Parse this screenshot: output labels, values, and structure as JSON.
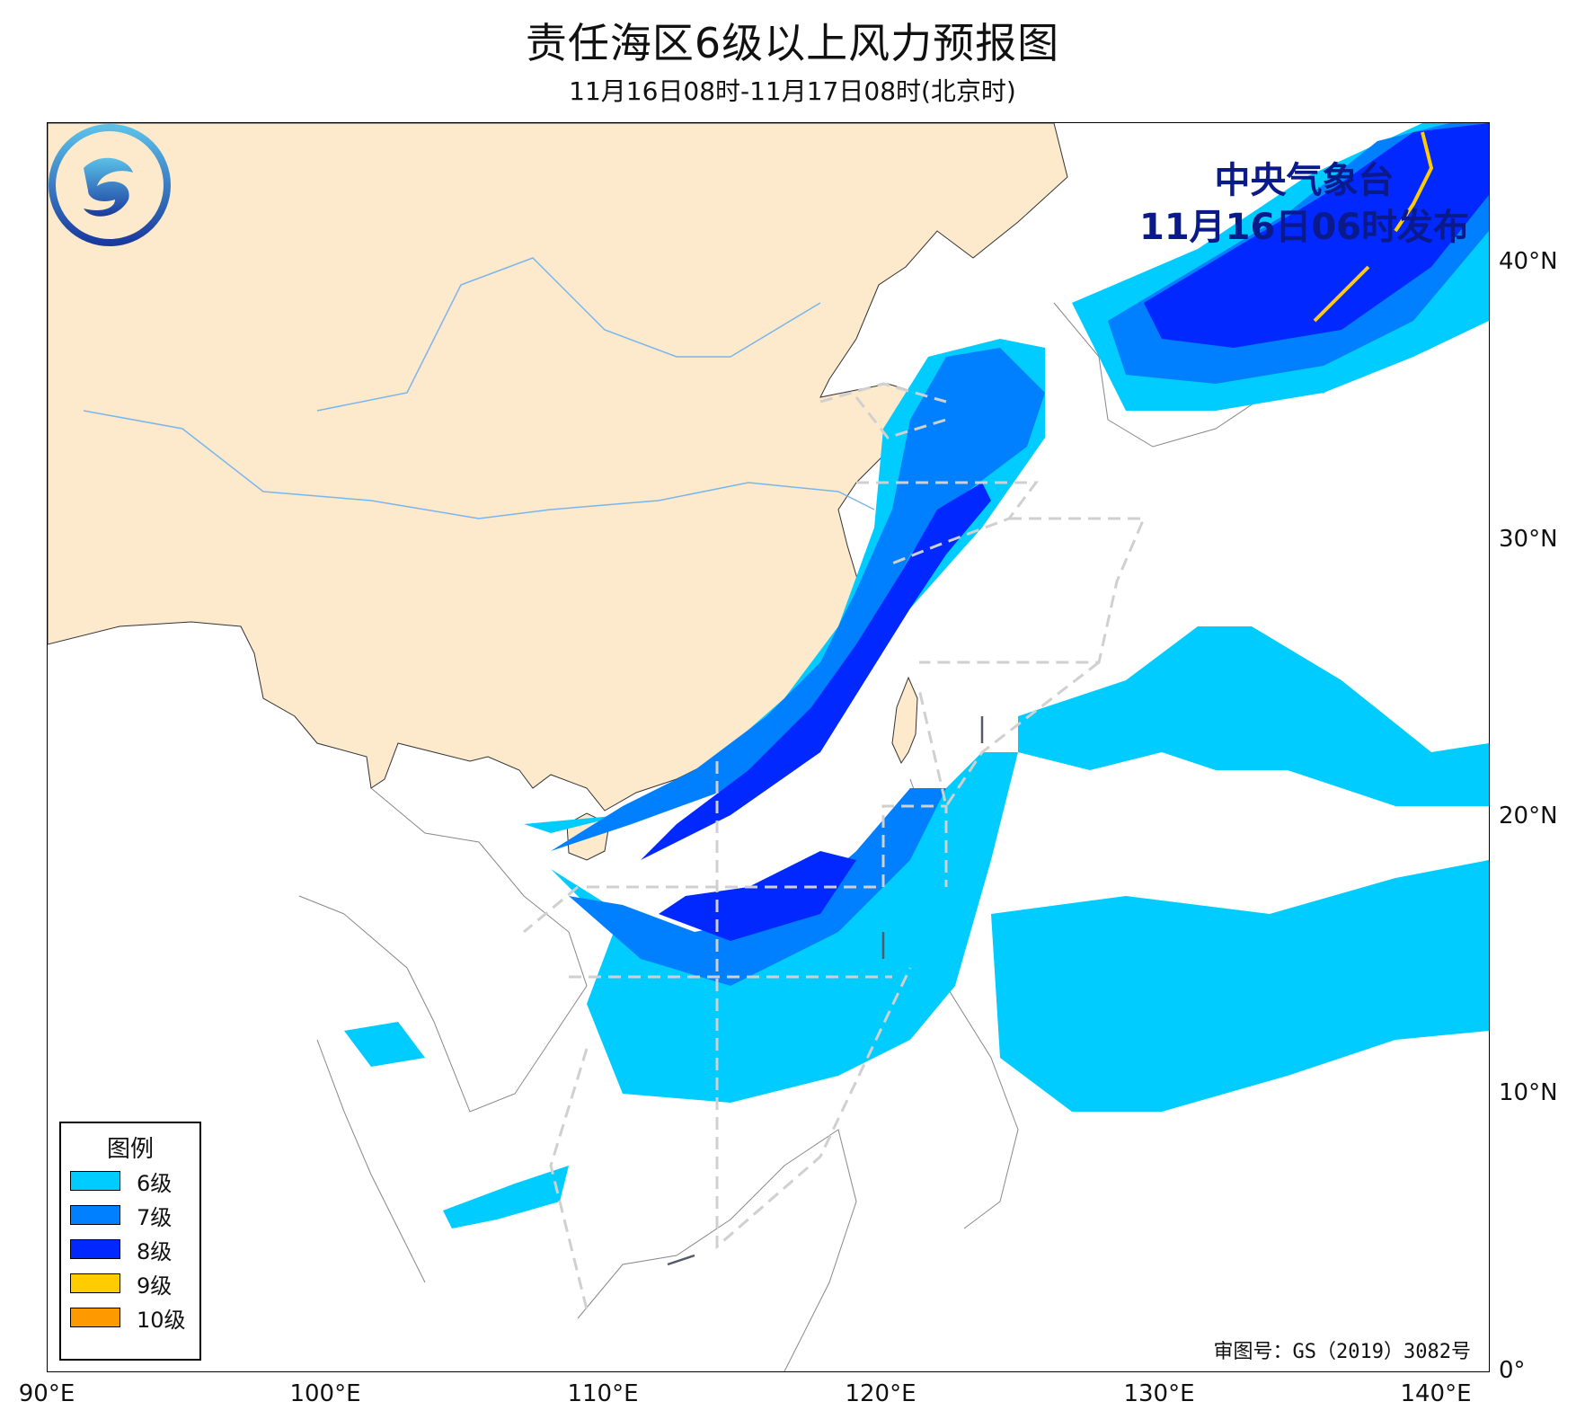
{
  "title": "责任海区6级以上风力预报图",
  "subtitle": "11月16日08时-11月17日08时(北京时)",
  "issuer": {
    "agency": "中央气象台",
    "issued": "11月16日06时发布"
  },
  "review_number": "审图号：GS（2019）3082号",
  "axes": {
    "x_ticks": [
      "90°E",
      "100°E",
      "110°E",
      "120°E",
      "130°E",
      "140°E"
    ],
    "y_ticks": [
      "0°",
      "10°N",
      "20°N",
      "30°N",
      "40°N"
    ],
    "lon_range": [
      90,
      142
    ],
    "lat_range": [
      0,
      45
    ]
  },
  "legend": {
    "title": "图例",
    "items": [
      {
        "label": "6级",
        "color": "#00ccff"
      },
      {
        "label": "7级",
        "color": "#0080ff"
      },
      {
        "label": "8级",
        "color": "#0028ff"
      },
      {
        "label": "9级",
        "color": "#ffcc00"
      },
      {
        "label": "10级",
        "color": "#ff9900"
      }
    ]
  },
  "colors": {
    "china_land": "#fde9cb",
    "boundary_line": "#d0d0d0",
    "river": "#7ab6ee"
  }
}
